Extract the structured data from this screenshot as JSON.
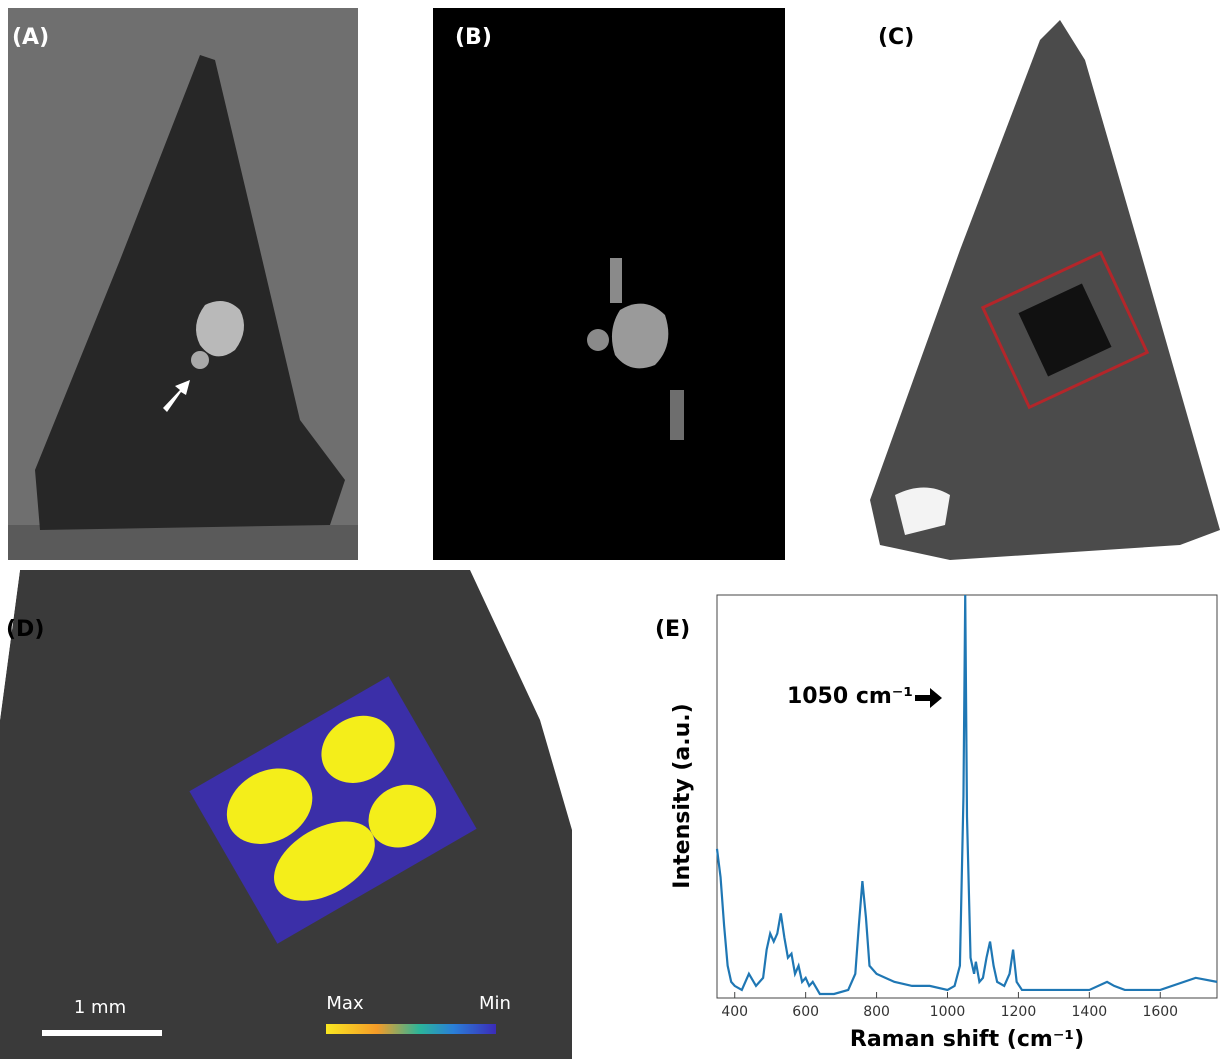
{
  "panels": [
    "(A)",
    "(B)",
    "(C)",
    "(D)",
    "(E)"
  ],
  "scale_bar": "1 mm",
  "colorbar": {
    "max": "Max",
    "min": "Min"
  },
  "chart_data": {
    "type": "line",
    "annotation": "1050 cm⁻¹",
    "xlabel": "Raman shift (cm⁻¹)",
    "ylabel": "Intensity (a.u.)",
    "x": [
      350,
      360,
      370,
      380,
      390,
      400,
      420,
      440,
      460,
      480,
      490,
      500,
      510,
      520,
      530,
      540,
      550,
      560,
      570,
      580,
      590,
      600,
      610,
      620,
      640,
      680,
      720,
      740,
      750,
      760,
      770,
      780,
      800,
      850,
      900,
      950,
      1000,
      1020,
      1035,
      1045,
      1050,
      1055,
      1065,
      1075,
      1080,
      1090,
      1100,
      1110,
      1120,
      1130,
      1140,
      1160,
      1175,
      1185,
      1195,
      1210,
      1250,
      1300,
      1400,
      1450,
      1470,
      1500,
      1600,
      1700,
      1760
    ],
    "series": [
      {
        "color": "#1f77b4",
        "values": [
          37,
          30,
          18,
          8,
          4,
          3,
          2,
          6,
          3,
          5,
          12,
          16,
          14,
          16,
          21,
          15,
          10,
          11,
          6,
          8,
          4,
          5,
          3,
          4,
          1,
          1,
          2,
          6,
          18,
          29,
          20,
          8,
          6,
          4,
          3,
          3,
          2,
          3,
          8,
          50,
          100,
          45,
          10,
          6,
          9,
          4,
          5,
          10,
          14,
          8,
          4,
          3,
          6,
          12,
          4,
          2,
          2,
          2,
          2,
          4,
          3,
          2,
          2,
          5,
          4
        ]
      }
    ],
    "xlim": [
      350,
      1760
    ],
    "ylim": [
      0,
      100
    ],
    "xticks": [
      400,
      600,
      800,
      1000,
      1200,
      1400,
      1600
    ]
  }
}
